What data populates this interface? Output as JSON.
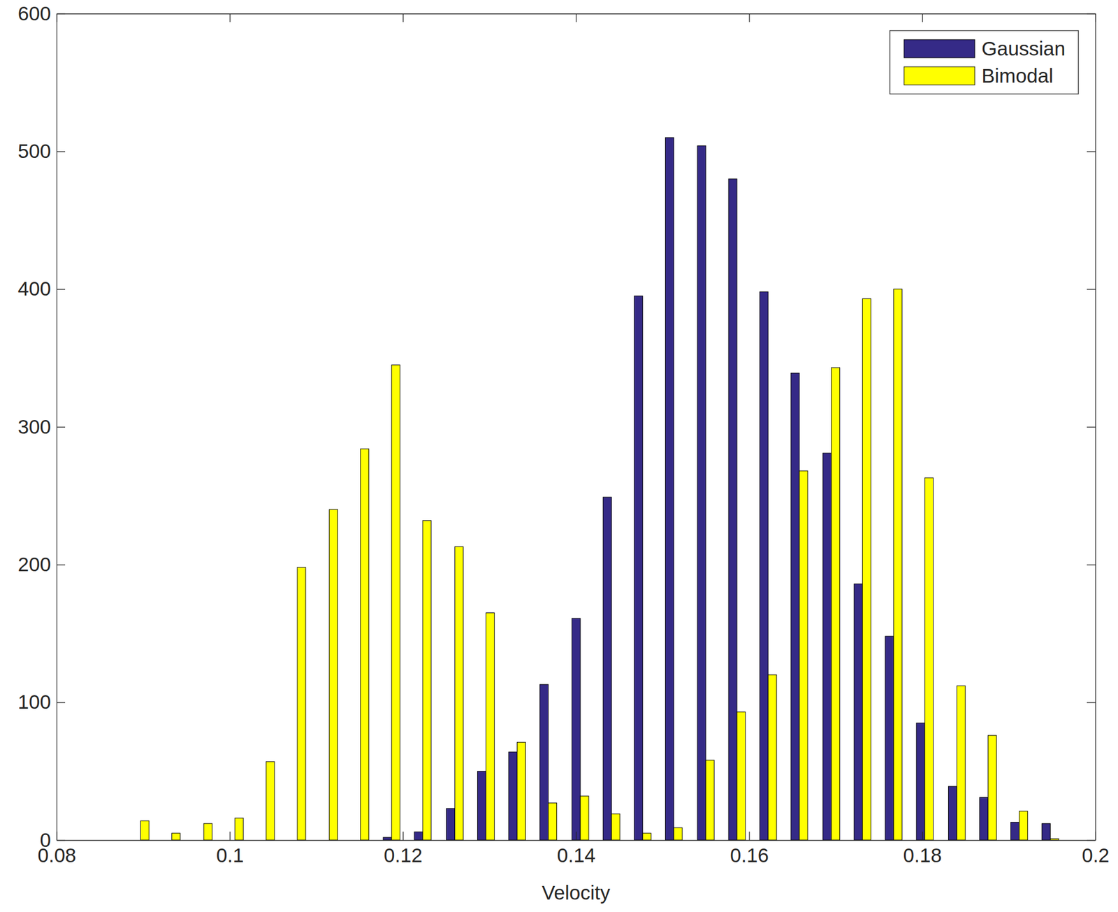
{
  "chart_data": {
    "type": "bar",
    "x_label": "Velocity",
    "x": [
      0.0897,
      0.0933,
      0.097,
      0.1006,
      0.1042,
      0.1078,
      0.1115,
      0.1151,
      0.1187,
      0.1223,
      0.126,
      0.1296,
      0.1332,
      0.1368,
      0.1405,
      0.1441,
      0.1477,
      0.1513,
      0.155,
      0.1586,
      0.1622,
      0.1658,
      0.1695,
      0.1731,
      0.1767,
      0.1803,
      0.184,
      0.1876,
      0.1912,
      0.1948
    ],
    "series": [
      {
        "name": "Gaussian",
        "color": "#352a87",
        "values": [
          0,
          0,
          0,
          0,
          0,
          0,
          0,
          0,
          2,
          6,
          23,
          50,
          64,
          113,
          161,
          249,
          395,
          510,
          504,
          480,
          398,
          339,
          281,
          186,
          148,
          85,
          39,
          31,
          13,
          12
        ]
      },
      {
        "name": "Bimodal",
        "color": "#ffff00",
        "values": [
          14,
          5,
          12,
          16,
          57,
          198,
          240,
          284,
          345,
          232,
          213,
          165,
          71,
          27,
          32,
          19,
          5,
          9,
          58,
          93,
          120,
          268,
          343,
          393,
          400,
          263,
          112,
          76,
          21,
          1
        ]
      }
    ],
    "xlim": [
      0.08,
      0.2
    ],
    "xticks": [
      0.08,
      0.1,
      0.12,
      0.14,
      0.16,
      0.18,
      0.2
    ],
    "ylim": [
      0,
      600
    ],
    "yticks": [
      0,
      100,
      200,
      300,
      400,
      500,
      600
    ],
    "legend": "upper right",
    "grid": false
  }
}
